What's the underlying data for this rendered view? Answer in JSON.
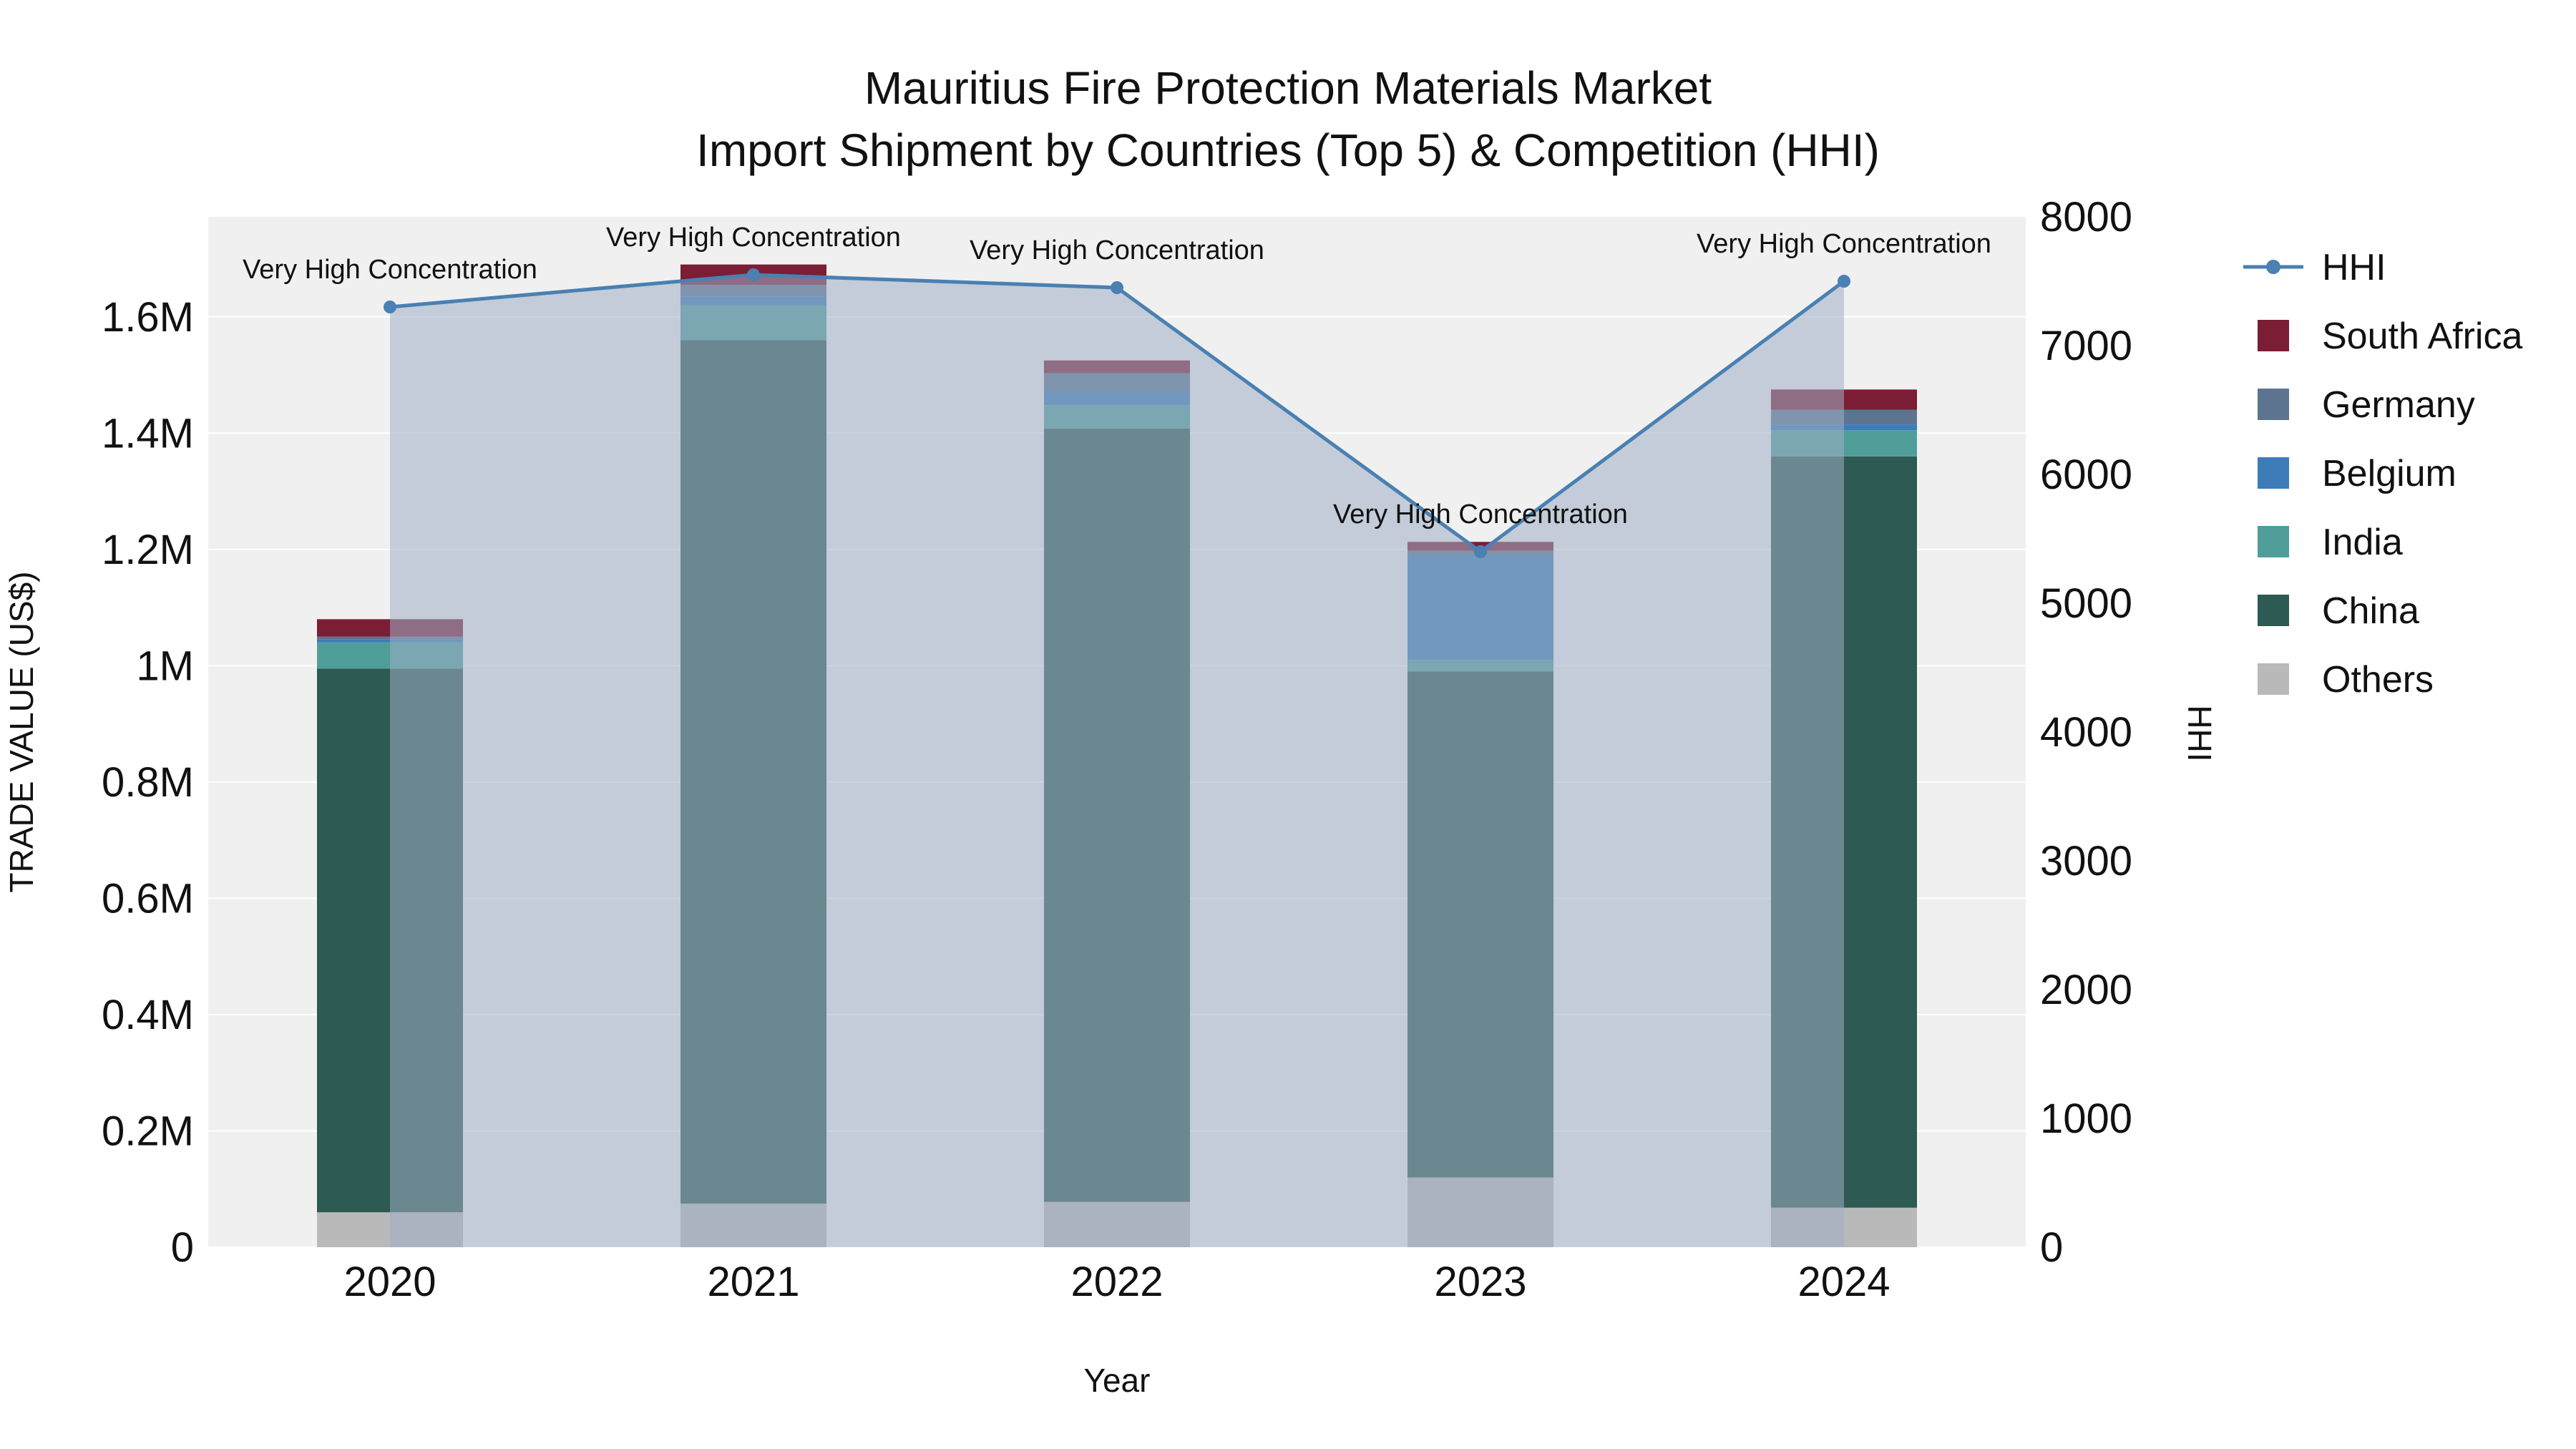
{
  "title": {
    "line1": "Mauritius Fire Protection Materials Market",
    "line2": "Import Shipment by Countries (Top 5) & Competition (HHI)"
  },
  "chart_data": {
    "type": "bar+line",
    "x": [
      "2020",
      "2021",
      "2022",
      "2023",
      "2024"
    ],
    "bar_series": [
      {
        "name": "Others",
        "color": "#b9b9b9",
        "values": [
          60000,
          75000,
          78000,
          120000,
          68000
        ]
      },
      {
        "name": "China",
        "color": "#2d5a52",
        "values": [
          935000,
          1485000,
          1330000,
          870000,
          1292000
        ]
      },
      {
        "name": "India",
        "color": "#4f9e99",
        "values": [
          45000,
          60000,
          40000,
          20000,
          45000
        ]
      },
      {
        "name": "Belgium",
        "color": "#3e7cb9",
        "values": [
          5000,
          15000,
          25000,
          180000,
          10000
        ]
      },
      {
        "name": "Germany",
        "color": "#5c7490",
        "values": [
          5000,
          20000,
          30000,
          8000,
          25000
        ]
      },
      {
        "name": "South Africa",
        "color": "#7c1d36",
        "values": [
          30000,
          35000,
          22000,
          15000,
          35000
        ]
      }
    ],
    "line_series": {
      "name": "HHI",
      "axis": "right",
      "color": "#4a80b2",
      "area_fill": "rgba(158,175,196,0.55)",
      "values": [
        7300,
        7550,
        7450,
        5400,
        7500
      ]
    },
    "left_axis": {
      "title": "TRADE VALUE (US$)",
      "range": [
        0,
        1772000
      ],
      "ticks": [
        {
          "value": 0,
          "label": "0"
        },
        {
          "value": 200000,
          "label": "0.2M"
        },
        {
          "value": 400000,
          "label": "0.4M"
        },
        {
          "value": 600000,
          "label": "0.6M"
        },
        {
          "value": 800000,
          "label": "0.8M"
        },
        {
          "value": 1000000,
          "label": "1M"
        },
        {
          "value": 1200000,
          "label": "1.2M"
        },
        {
          "value": 1400000,
          "label": "1.4M"
        },
        {
          "value": 1600000,
          "label": "1.6M"
        }
      ]
    },
    "right_axis": {
      "title": "HHI",
      "range": [
        0,
        8000
      ],
      "ticks": [
        {
          "value": 0,
          "label": "0"
        },
        {
          "value": 1000,
          "label": "1000"
        },
        {
          "value": 2000,
          "label": "2000"
        },
        {
          "value": 3000,
          "label": "3000"
        },
        {
          "value": 4000,
          "label": "4000"
        },
        {
          "value": 5000,
          "label": "5000"
        },
        {
          "value": 6000,
          "label": "6000"
        },
        {
          "value": 7000,
          "label": "7000"
        },
        {
          "value": 8000,
          "label": "8000"
        }
      ]
    },
    "x_axis": {
      "title": "Year"
    },
    "annotations": [
      {
        "x_index": 0,
        "text": "Very High Concentration"
      },
      {
        "x_index": 1,
        "text": "Very High Concentration"
      },
      {
        "x_index": 2,
        "text": "Very High Concentration"
      },
      {
        "x_index": 3,
        "text": "Very High Concentration"
      },
      {
        "x_index": 4,
        "text": "Very High Concentration"
      }
    ],
    "grid": true,
    "legend_position": "right"
  },
  "legend": {
    "items": [
      {
        "label": "HHI",
        "marker": "line",
        "color": "#4a80b2"
      },
      {
        "label": "South Africa",
        "marker": "square",
        "color": "#7c1d36"
      },
      {
        "label": "Germany",
        "marker": "square",
        "color": "#5c7490"
      },
      {
        "label": "Belgium",
        "marker": "square",
        "color": "#3e7cb9"
      },
      {
        "label": "India",
        "marker": "square",
        "color": "#4f9e99"
      },
      {
        "label": "China",
        "marker": "square",
        "color": "#2d5a52"
      },
      {
        "label": "Others",
        "marker": "square",
        "color": "#b9b9b9"
      }
    ]
  }
}
